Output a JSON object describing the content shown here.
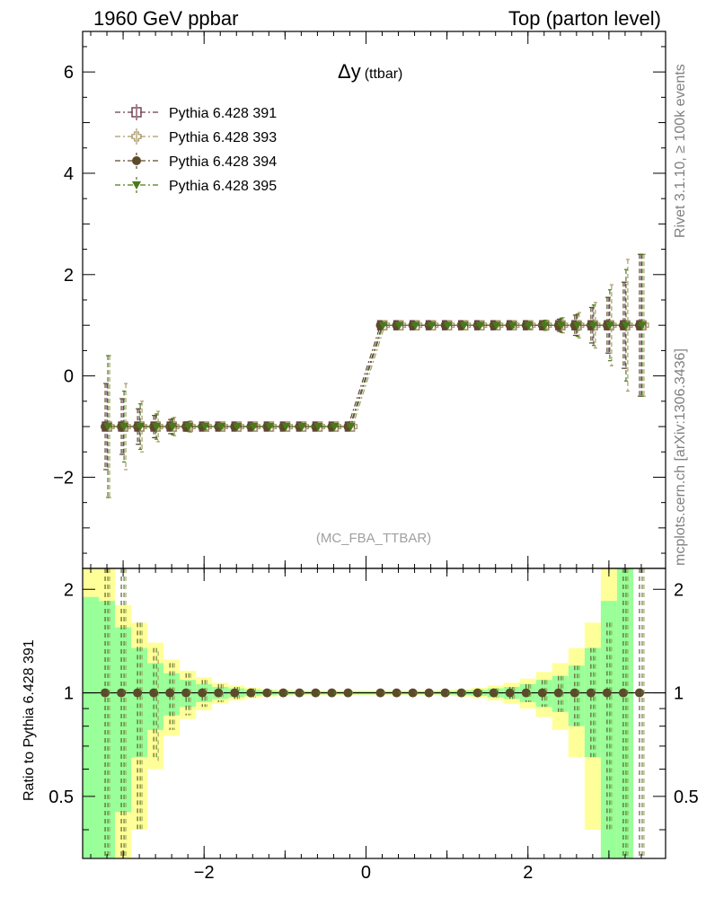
{
  "header": {
    "left": "1960 GeV ppbar",
    "right": "Top (parton level)"
  },
  "plot": {
    "title_main": "Δy",
    "title_sub": "(ttbar)",
    "watermark": "(MC_FBA_TTBAR)"
  },
  "side_text": {
    "rivet": "Rivet 3.1.10, ≥ 100k events",
    "mcplots": "mcplots.cern.ch [arXiv:1306.3436]"
  },
  "ratio_ylabel": "Ratio to Pythia 6.428 391",
  "colors": {
    "band_green": "#99ff99",
    "band_yellow": "#ffff99",
    "s391": "#6b3b4e",
    "s393": "#a89a6b",
    "s394": "#5c4a2a",
    "s395": "#4a7a1a"
  },
  "chart_data": [
    {
      "type": "line",
      "title": "Δy (ttbar)",
      "xlim": [
        -3.5,
        3.7
      ],
      "ylim": [
        -3.8,
        6.8
      ],
      "x_ticks": [
        -2,
        0,
        2
      ],
      "y_ticks": [
        -2,
        0,
        2,
        4,
        6
      ],
      "x_tick_labels": [
        "−2",
        "0",
        "2"
      ],
      "y_tick_labels": [
        "−2",
        "0",
        "2",
        "4",
        "6"
      ],
      "legend_position": "top-left",
      "x": [
        -3.2,
        -3.0,
        -2.8,
        -2.6,
        -2.4,
        -2.2,
        -2.0,
        -1.8,
        -1.6,
        -1.4,
        -1.2,
        -1.0,
        -0.8,
        -0.6,
        -0.4,
        -0.2,
        0.2,
        0.4,
        0.6,
        0.8,
        1.0,
        1.2,
        1.4,
        1.6,
        1.8,
        2.0,
        2.2,
        2.4,
        2.6,
        2.8,
        3.0,
        3.2,
        3.4
      ],
      "series": [
        {
          "name": "Pythia 6.428 391",
          "marker": "open-square",
          "color": "#6b3b4e",
          "values": [
            -1,
            -1,
            -1,
            -1,
            -1,
            -1,
            -1,
            -1,
            -1,
            -1,
            -1,
            -1,
            -1,
            -1,
            -1,
            -1,
            1,
            1,
            1,
            1,
            1,
            1,
            1,
            1,
            1,
            1,
            1,
            1,
            1,
            1,
            1,
            1,
            1
          ],
          "errors": [
            0.85,
            0.55,
            0.35,
            0.22,
            0.14,
            0.09,
            0.06,
            0.04,
            0.03,
            0.02,
            0.015,
            0.01,
            0.01,
            0.01,
            0.01,
            0.01,
            0.01,
            0.01,
            0.01,
            0.01,
            0.01,
            0.015,
            0.02,
            0.03,
            0.04,
            0.06,
            0.09,
            0.12,
            0.2,
            0.35,
            0.55,
            0.85,
            1.4
          ]
        },
        {
          "name": "Pythia 6.428 393",
          "marker": "open-cross",
          "color": "#a89a6b",
          "values": [
            -1,
            -1,
            -1,
            -1,
            -1,
            -1,
            -1,
            -1,
            -1,
            -1,
            -1,
            -1,
            -1,
            -1,
            -1,
            -1,
            1,
            1,
            1,
            1,
            1,
            1,
            1,
            1,
            1,
            1,
            1,
            1,
            1,
            1,
            1,
            1,
            1
          ],
          "errors": [
            1.4,
            0.85,
            0.5,
            0.3,
            0.18,
            0.11,
            0.07,
            0.05,
            0.035,
            0.025,
            0.02,
            0.015,
            0.012,
            0.01,
            0.01,
            0.01,
            0.01,
            0.01,
            0.01,
            0.01,
            0.012,
            0.015,
            0.02,
            0.03,
            0.05,
            0.07,
            0.1,
            0.15,
            0.25,
            0.45,
            0.8,
            1.3,
            1.4
          ]
        },
        {
          "name": "Pythia 6.428 394",
          "marker": "filled-circle",
          "color": "#5c4a2a",
          "values": [
            -1,
            -1,
            -1,
            -1,
            -1,
            -1,
            -1,
            -1,
            -1,
            -1,
            -1,
            -1,
            -1,
            -1,
            -1,
            -1,
            1,
            1,
            1,
            1,
            1,
            1,
            1,
            1,
            1,
            1,
            1,
            1,
            1,
            1,
            1,
            1,
            1
          ],
          "errors": [
            0.85,
            0.55,
            0.35,
            0.22,
            0.14,
            0.09,
            0.06,
            0.04,
            0.03,
            0.02,
            0.015,
            0.01,
            0.01,
            0.01,
            0.01,
            0.01,
            0.01,
            0.01,
            0.01,
            0.01,
            0.01,
            0.015,
            0.02,
            0.03,
            0.04,
            0.06,
            0.09,
            0.12,
            0.2,
            0.35,
            0.55,
            0.85,
            1.4
          ]
        },
        {
          "name": "Pythia 6.428 395",
          "marker": "filled-triangle-down",
          "color": "#4a7a1a",
          "values": [
            -1,
            -1,
            -1,
            -1,
            -1,
            -1,
            -1,
            -1,
            -1,
            -1,
            -1,
            -1,
            -1,
            -1,
            -1,
            -1,
            1,
            1,
            1,
            1,
            1,
            1,
            1,
            1,
            1,
            1,
            1,
            1,
            1,
            1,
            1,
            1,
            1
          ],
          "errors": [
            1.4,
            0.7,
            0.45,
            0.25,
            0.16,
            0.1,
            0.06,
            0.04,
            0.03,
            0.02,
            0.015,
            0.01,
            0.01,
            0.01,
            0.01,
            0.01,
            0.01,
            0.01,
            0.01,
            0.01,
            0.01,
            0.015,
            0.02,
            0.03,
            0.045,
            0.07,
            0.1,
            0.14,
            0.22,
            0.4,
            0.7,
            1.1,
            1.4
          ]
        }
      ]
    },
    {
      "type": "line",
      "title": "",
      "ylabel": "Ratio to Pythia 6.428 391",
      "xlim": [
        -3.5,
        3.7
      ],
      "ylim": [
        0.33,
        2.3
      ],
      "x_ticks": [
        -2,
        0,
        2
      ],
      "y_ticks": [
        0.5,
        1,
        2
      ],
      "x_tick_labels": [
        "−2",
        "0",
        "2"
      ],
      "y_tick_labels": [
        "0.5",
        "1",
        "2"
      ],
      "reference": 1,
      "bins": [
        -3.4,
        -3.2,
        -3.0,
        -2.8,
        -2.6,
        -2.4,
        -2.2,
        -2.0,
        -1.8,
        -1.6,
        -1.4,
        -1.2,
        -1.0,
        -0.8,
        -0.6,
        -0.4,
        -0.2,
        0.0,
        0.2,
        0.4,
        0.6,
        0.8,
        1.0,
        1.2,
        1.4,
        1.6,
        1.8,
        2.0,
        2.2,
        2.4,
        2.6,
        2.8,
        3.0,
        3.2,
        3.4
      ],
      "green_band": [
        0.9,
        0.85,
        0.55,
        0.35,
        0.22,
        0.14,
        0.09,
        0.06,
        0.04,
        0.03,
        0.02,
        0.015,
        0.012,
        0.01,
        0.01,
        0.01,
        0.01,
        0.01,
        0.01,
        0.01,
        0.01,
        0.01,
        0.012,
        0.015,
        0.02,
        0.03,
        0.04,
        0.06,
        0.09,
        0.12,
        0.2,
        0.35,
        0.85,
        1.4
      ],
      "yellow_band": [
        1.6,
        1.4,
        0.8,
        0.6,
        0.4,
        0.25,
        0.16,
        0.11,
        0.07,
        0.05,
        0.035,
        0.025,
        0.02,
        0.015,
        0.015,
        0.015,
        0.015,
        0.015,
        0.015,
        0.015,
        0.015,
        0.015,
        0.02,
        0.025,
        0.035,
        0.05,
        0.07,
        0.1,
        0.15,
        0.22,
        0.35,
        0.6,
        1.4,
        1.6
      ],
      "x": [
        -3.2,
        -3.0,
        -2.8,
        -2.6,
        -2.4,
        -2.2,
        -2.0,
        -1.8,
        -1.6,
        -1.4,
        -1.2,
        -1.0,
        -0.8,
        -0.6,
        -0.4,
        -0.2,
        0.2,
        0.4,
        0.6,
        0.8,
        1.0,
        1.2,
        1.4,
        1.6,
        1.8,
        2.0,
        2.2,
        2.4,
        2.6,
        2.8,
        3.0,
        3.2,
        3.4
      ],
      "ratio_series": [
        {
          "name": "Pythia 6.428 391",
          "values": [
            1,
            1,
            1,
            1,
            1,
            1,
            1,
            1,
            1,
            1,
            1,
            1,
            1,
            1,
            1,
            1,
            1,
            1,
            1,
            1,
            1,
            1,
            1,
            1,
            1,
            1,
            1,
            1,
            1,
            1,
            1,
            1,
            1
          ]
        },
        {
          "name": "Pythia 6.428 393",
          "values": [
            1.0,
            1.0,
            1.0,
            0.97,
            1.0,
            1.0,
            1.0,
            1.0,
            1.0,
            1.0,
            1.0,
            1.0,
            1.0,
            1.0,
            1.0,
            1.0,
            1.0,
            1.0,
            1.0,
            1.0,
            1.0,
            1.0,
            1.0,
            1.0,
            1.0,
            1.0,
            1.0,
            1.0,
            1.0,
            1.0,
            1.0,
            1.0,
            1.0
          ]
        },
        {
          "name": "Pythia 6.428 394",
          "values": [
            1,
            1,
            1,
            1,
            1,
            1,
            1,
            1,
            1,
            1,
            1,
            1,
            1,
            1,
            1,
            1,
            1,
            1,
            1,
            1,
            1,
            1,
            1,
            1,
            1,
            1,
            1,
            1,
            1,
            1,
            1,
            1,
            1
          ]
        },
        {
          "name": "Pythia 6.428 395",
          "values": [
            1,
            1,
            1,
            1,
            1,
            1,
            1,
            1,
            1,
            1,
            1,
            1,
            1,
            1,
            1,
            1,
            1,
            1,
            1,
            1,
            1,
            1,
            1,
            1,
            1,
            1,
            1,
            1,
            1,
            1,
            1,
            1,
            1
          ]
        }
      ],
      "ratio_errors": [
        2.4,
        1.4,
        0.6,
        0.35,
        0.22,
        0.14,
        0.09,
        0.06,
        0.04,
        0.03,
        0.02,
        0.015,
        0.012,
        0.01,
        0.01,
        0.01,
        0.01,
        0.01,
        0.01,
        0.01,
        0.012,
        0.015,
        0.02,
        0.03,
        0.04,
        0.06,
        0.09,
        0.12,
        0.2,
        0.35,
        0.6,
        1.3,
        2.4
      ]
    }
  ]
}
